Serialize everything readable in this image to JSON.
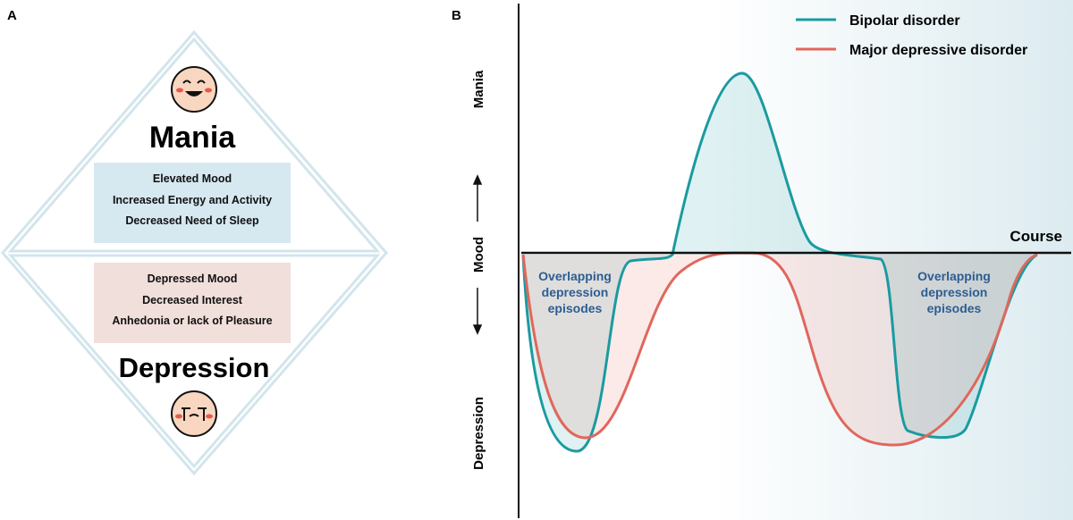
{
  "panel_a": {
    "label": "A",
    "mania": {
      "title": "Mania",
      "symptoms": [
        "Elevated Mood",
        "Increased Energy and Activity",
        "Decreased Need of Sleep"
      ]
    },
    "depression": {
      "title": "Depression",
      "symptoms": [
        "Depressed Mood",
        "Decreased Interest",
        "Anhedonia or lack of Pleasure"
      ]
    }
  },
  "panel_b": {
    "label": "B",
    "y_labels": [
      "Mania",
      "Mood",
      "Depression"
    ],
    "x_label": "Course",
    "legend": [
      {
        "name": "Bipolar disorder",
        "color": "#1a9ba0"
      },
      {
        "name": "Major depressive disorder",
        "color": "#e0675c"
      }
    ],
    "annotations": [
      "Overlapping depression episodes",
      "Overlapping depression episodes"
    ]
  }
}
